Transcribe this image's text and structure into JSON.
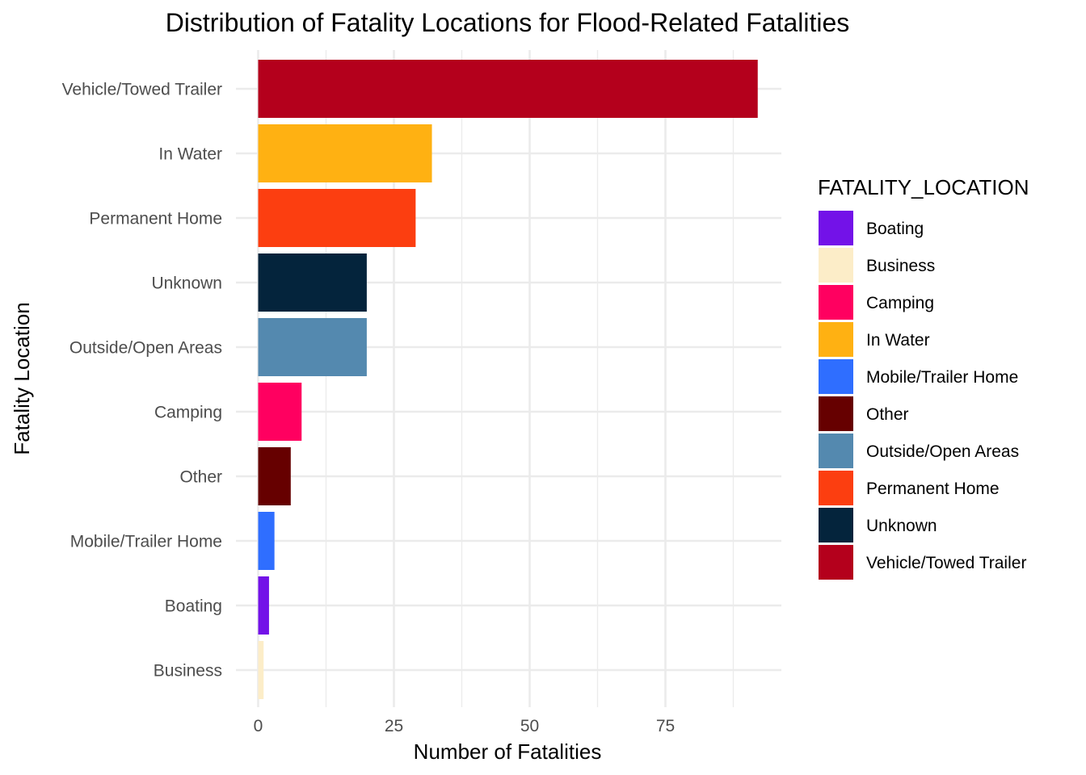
{
  "chart_data": {
    "type": "bar",
    "orientation": "horizontal",
    "title": "Distribution of Fatality Locations for Flood-Related Fatalities",
    "xlabel": "Number of Fatalities",
    "ylabel": "Fatality Location",
    "xlim": [
      0,
      97
    ],
    "x_ticks": [
      0,
      25,
      50,
      75
    ],
    "grid": true,
    "categories": [
      "Vehicle/Towed Trailer",
      "In Water",
      "Permanent Home",
      "Unknown",
      "Outside/Open Areas",
      "Camping",
      "Other",
      "Mobile/Trailer Home",
      "Boating",
      "Business"
    ],
    "values": [
      92,
      32,
      29,
      20,
      20,
      8,
      6,
      3,
      2,
      1
    ],
    "colors": {
      "Boating": "#7312E8",
      "Business": "#FCEDC8",
      "Camping": "#FF0060",
      "In Water": "#FFB112",
      "Mobile/Trailer Home": "#2F6EFF",
      "Other": "#660000",
      "Outside/Open Areas": "#5489AF",
      "Permanent Home": "#FC3E10",
      "Unknown": "#04243C",
      "Vehicle/Towed Trailer": "#B4001C"
    },
    "legend": {
      "title": "FATALITY_LOCATION",
      "position": "right",
      "entries": [
        "Boating",
        "Business",
        "Camping",
        "In Water",
        "Mobile/Trailer Home",
        "Other",
        "Outside/Open Areas",
        "Permanent Home",
        "Unknown",
        "Vehicle/Towed Trailer"
      ]
    }
  }
}
